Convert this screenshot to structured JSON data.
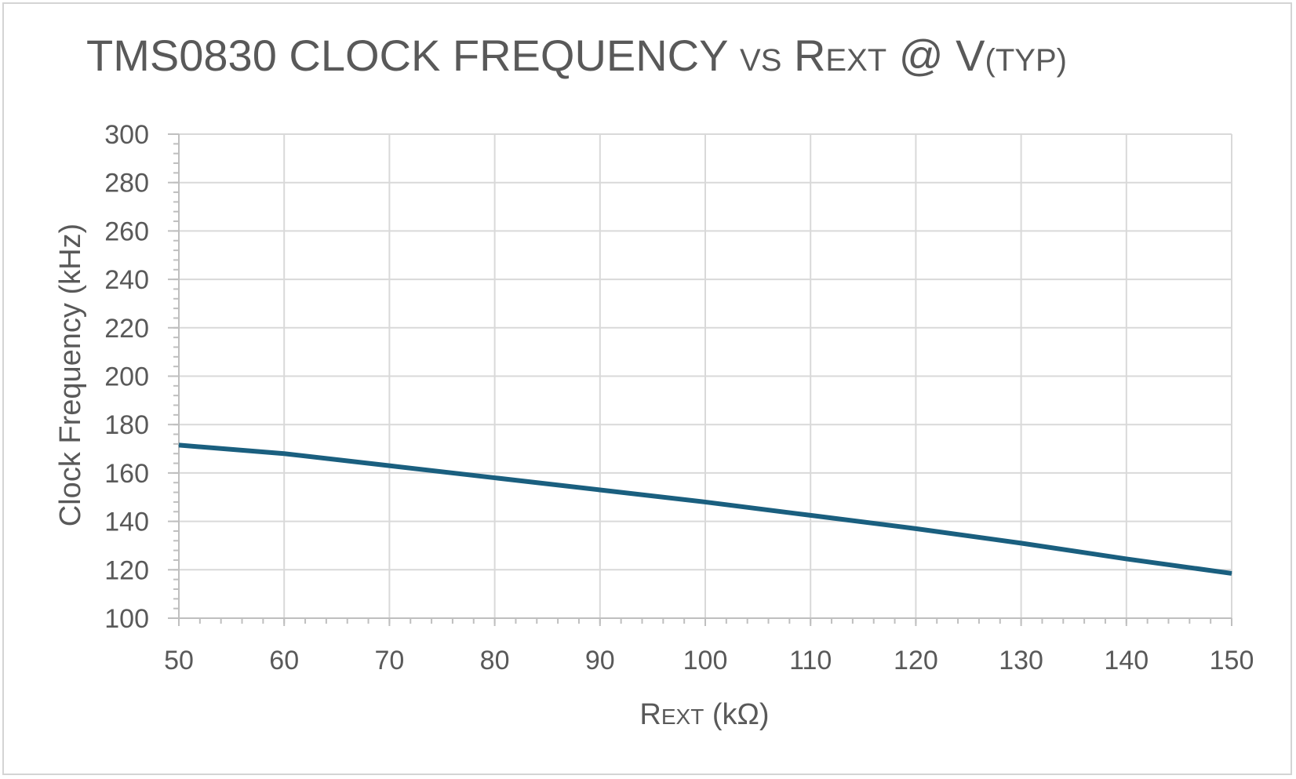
{
  "chart_data": {
    "type": "line",
    "title": {
      "part1": "TMS0830 CLOCK FREQUENCY ",
      "part2": "VS",
      "part3": " R",
      "part4": "EXT",
      "part5": " @ V",
      "part6": "(TYP)"
    },
    "xlabel": {
      "lead": "R",
      "small": "EXT",
      "rest": " (kΩ)"
    },
    "ylabel": "Clock Frequency (kHz)",
    "xlim": [
      50,
      150
    ],
    "ylim": [
      100,
      300
    ],
    "x_ticks": [
      50,
      60,
      70,
      80,
      90,
      100,
      110,
      120,
      130,
      140,
      150
    ],
    "y_ticks": [
      100,
      120,
      140,
      160,
      180,
      200,
      220,
      240,
      260,
      280,
      300
    ],
    "grid": true,
    "series": [
      {
        "color": "#1a5f7f",
        "x": [
          50,
          60,
          70,
          80,
          90,
          100,
          110,
          120,
          130,
          140,
          150
        ],
        "y": [
          171.5,
          168,
          163,
          158,
          153,
          148,
          142.5,
          137,
          131,
          124.5,
          118.5
        ]
      }
    ]
  }
}
